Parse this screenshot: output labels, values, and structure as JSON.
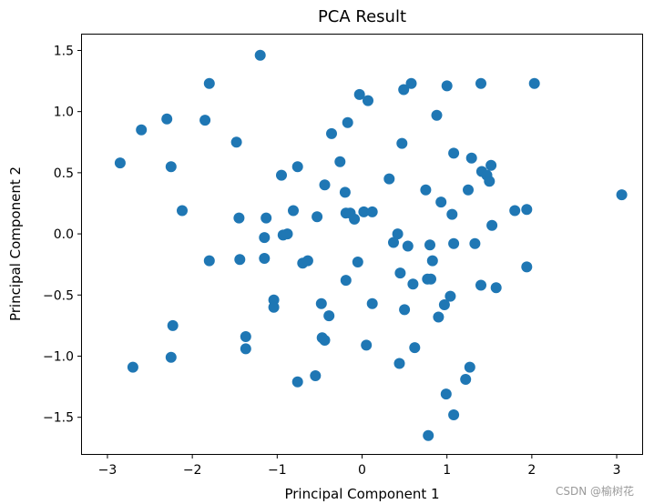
{
  "chart_data": {
    "type": "scatter",
    "title": "PCA Result",
    "xlabel": "Principal Component 1",
    "ylabel": "Principal Component 2",
    "xlim": [
      -3.3,
      3.3
    ],
    "ylim": [
      -1.8,
      1.63
    ],
    "xticks": [
      -3,
      -2,
      -1,
      0,
      1,
      2,
      3
    ],
    "xtick_labels": [
      "−3",
      "−2",
      "−1",
      "0",
      "1",
      "2",
      "3"
    ],
    "yticks": [
      -1.5,
      -1.0,
      -0.5,
      0.0,
      0.5,
      1.0,
      1.5
    ],
    "ytick_labels": [
      "−1.5",
      "−1.0",
      "−0.5",
      "0.0",
      "0.5",
      "1.0",
      "1.5"
    ],
    "grid": false,
    "marker_color": "#1f77b4",
    "points": [
      [
        -2.85,
        0.58
      ],
      [
        -2.7,
        -1.09
      ],
      [
        -2.6,
        0.85
      ],
      [
        -2.3,
        0.94
      ],
      [
        -2.25,
        0.55
      ],
      [
        -2.25,
        -1.01
      ],
      [
        -2.23,
        -0.75
      ],
      [
        -2.12,
        0.19
      ],
      [
        -1.85,
        0.93
      ],
      [
        -1.8,
        1.23
      ],
      [
        -1.8,
        -0.22
      ],
      [
        -1.48,
        0.75
      ],
      [
        -1.45,
        0.13
      ],
      [
        -1.44,
        -0.21
      ],
      [
        -1.37,
        -0.84
      ],
      [
        -1.37,
        -0.94
      ],
      [
        -1.2,
        1.46
      ],
      [
        -1.15,
        -0.03
      ],
      [
        -1.15,
        -0.2
      ],
      [
        -1.13,
        0.13
      ],
      [
        -1.04,
        -0.54
      ],
      [
        -1.04,
        -0.6
      ],
      [
        -0.95,
        0.48
      ],
      [
        -0.93,
        -0.01
      ],
      [
        -0.88,
        0.0
      ],
      [
        -0.81,
        0.19
      ],
      [
        -0.76,
        0.55
      ],
      [
        -0.76,
        -1.21
      ],
      [
        -0.7,
        -0.24
      ],
      [
        -0.64,
        -0.22
      ],
      [
        -0.55,
        -1.16
      ],
      [
        -0.53,
        0.14
      ],
      [
        -0.48,
        -0.57
      ],
      [
        -0.47,
        -0.85
      ],
      [
        -0.44,
        -0.87
      ],
      [
        -0.44,
        0.4
      ],
      [
        -0.36,
        0.82
      ],
      [
        -0.39,
        -0.67
      ],
      [
        -0.26,
        0.59
      ],
      [
        -0.2,
        0.34
      ],
      [
        -0.19,
        0.17
      ],
      [
        -0.19,
        -0.38
      ],
      [
        -0.17,
        0.91
      ],
      [
        -0.14,
        0.17
      ],
      [
        -0.09,
        0.12
      ],
      [
        -0.05,
        -0.23
      ],
      [
        -0.03,
        1.14
      ],
      [
        0.02,
        0.18
      ],
      [
        0.05,
        -0.91
      ],
      [
        0.07,
        1.09
      ],
      [
        0.12,
        0.18
      ],
      [
        0.12,
        -0.57
      ],
      [
        0.32,
        0.45
      ],
      [
        0.37,
        -0.07
      ],
      [
        0.42,
        0.0
      ],
      [
        0.44,
        -1.06
      ],
      [
        0.45,
        -0.32
      ],
      [
        0.47,
        0.74
      ],
      [
        0.49,
        1.18
      ],
      [
        0.5,
        -0.62
      ],
      [
        0.54,
        -0.1
      ],
      [
        0.58,
        1.23
      ],
      [
        0.6,
        -0.41
      ],
      [
        0.62,
        -0.93
      ],
      [
        0.75,
        0.36
      ],
      [
        0.77,
        -0.37
      ],
      [
        0.8,
        -0.09
      ],
      [
        0.81,
        -0.37
      ],
      [
        0.83,
        -0.22
      ],
      [
        0.78,
        -1.65
      ],
      [
        0.88,
        0.97
      ],
      [
        0.9,
        -0.68
      ],
      [
        0.93,
        0.26
      ],
      [
        0.97,
        -0.58
      ],
      [
        0.99,
        -1.31
      ],
      [
        1.0,
        1.21
      ],
      [
        1.04,
        -0.51
      ],
      [
        1.06,
        0.16
      ],
      [
        1.08,
        0.66
      ],
      [
        1.08,
        -0.08
      ],
      [
        1.08,
        -1.48
      ],
      [
        1.22,
        -1.19
      ],
      [
        1.25,
        0.36
      ],
      [
        1.27,
        -1.09
      ],
      [
        1.29,
        0.62
      ],
      [
        1.33,
        -0.08
      ],
      [
        1.4,
        1.23
      ],
      [
        1.4,
        -0.42
      ],
      [
        1.41,
        0.51
      ],
      [
        1.47,
        0.48
      ],
      [
        1.5,
        0.43
      ],
      [
        1.52,
        0.56
      ],
      [
        1.53,
        0.07
      ],
      [
        1.58,
        -0.44
      ],
      [
        1.8,
        0.19
      ],
      [
        1.94,
        0.2
      ],
      [
        1.94,
        -0.27
      ],
      [
        2.03,
        1.23
      ],
      [
        3.06,
        0.32
      ]
    ]
  },
  "watermark": "CSDN @榆树花"
}
